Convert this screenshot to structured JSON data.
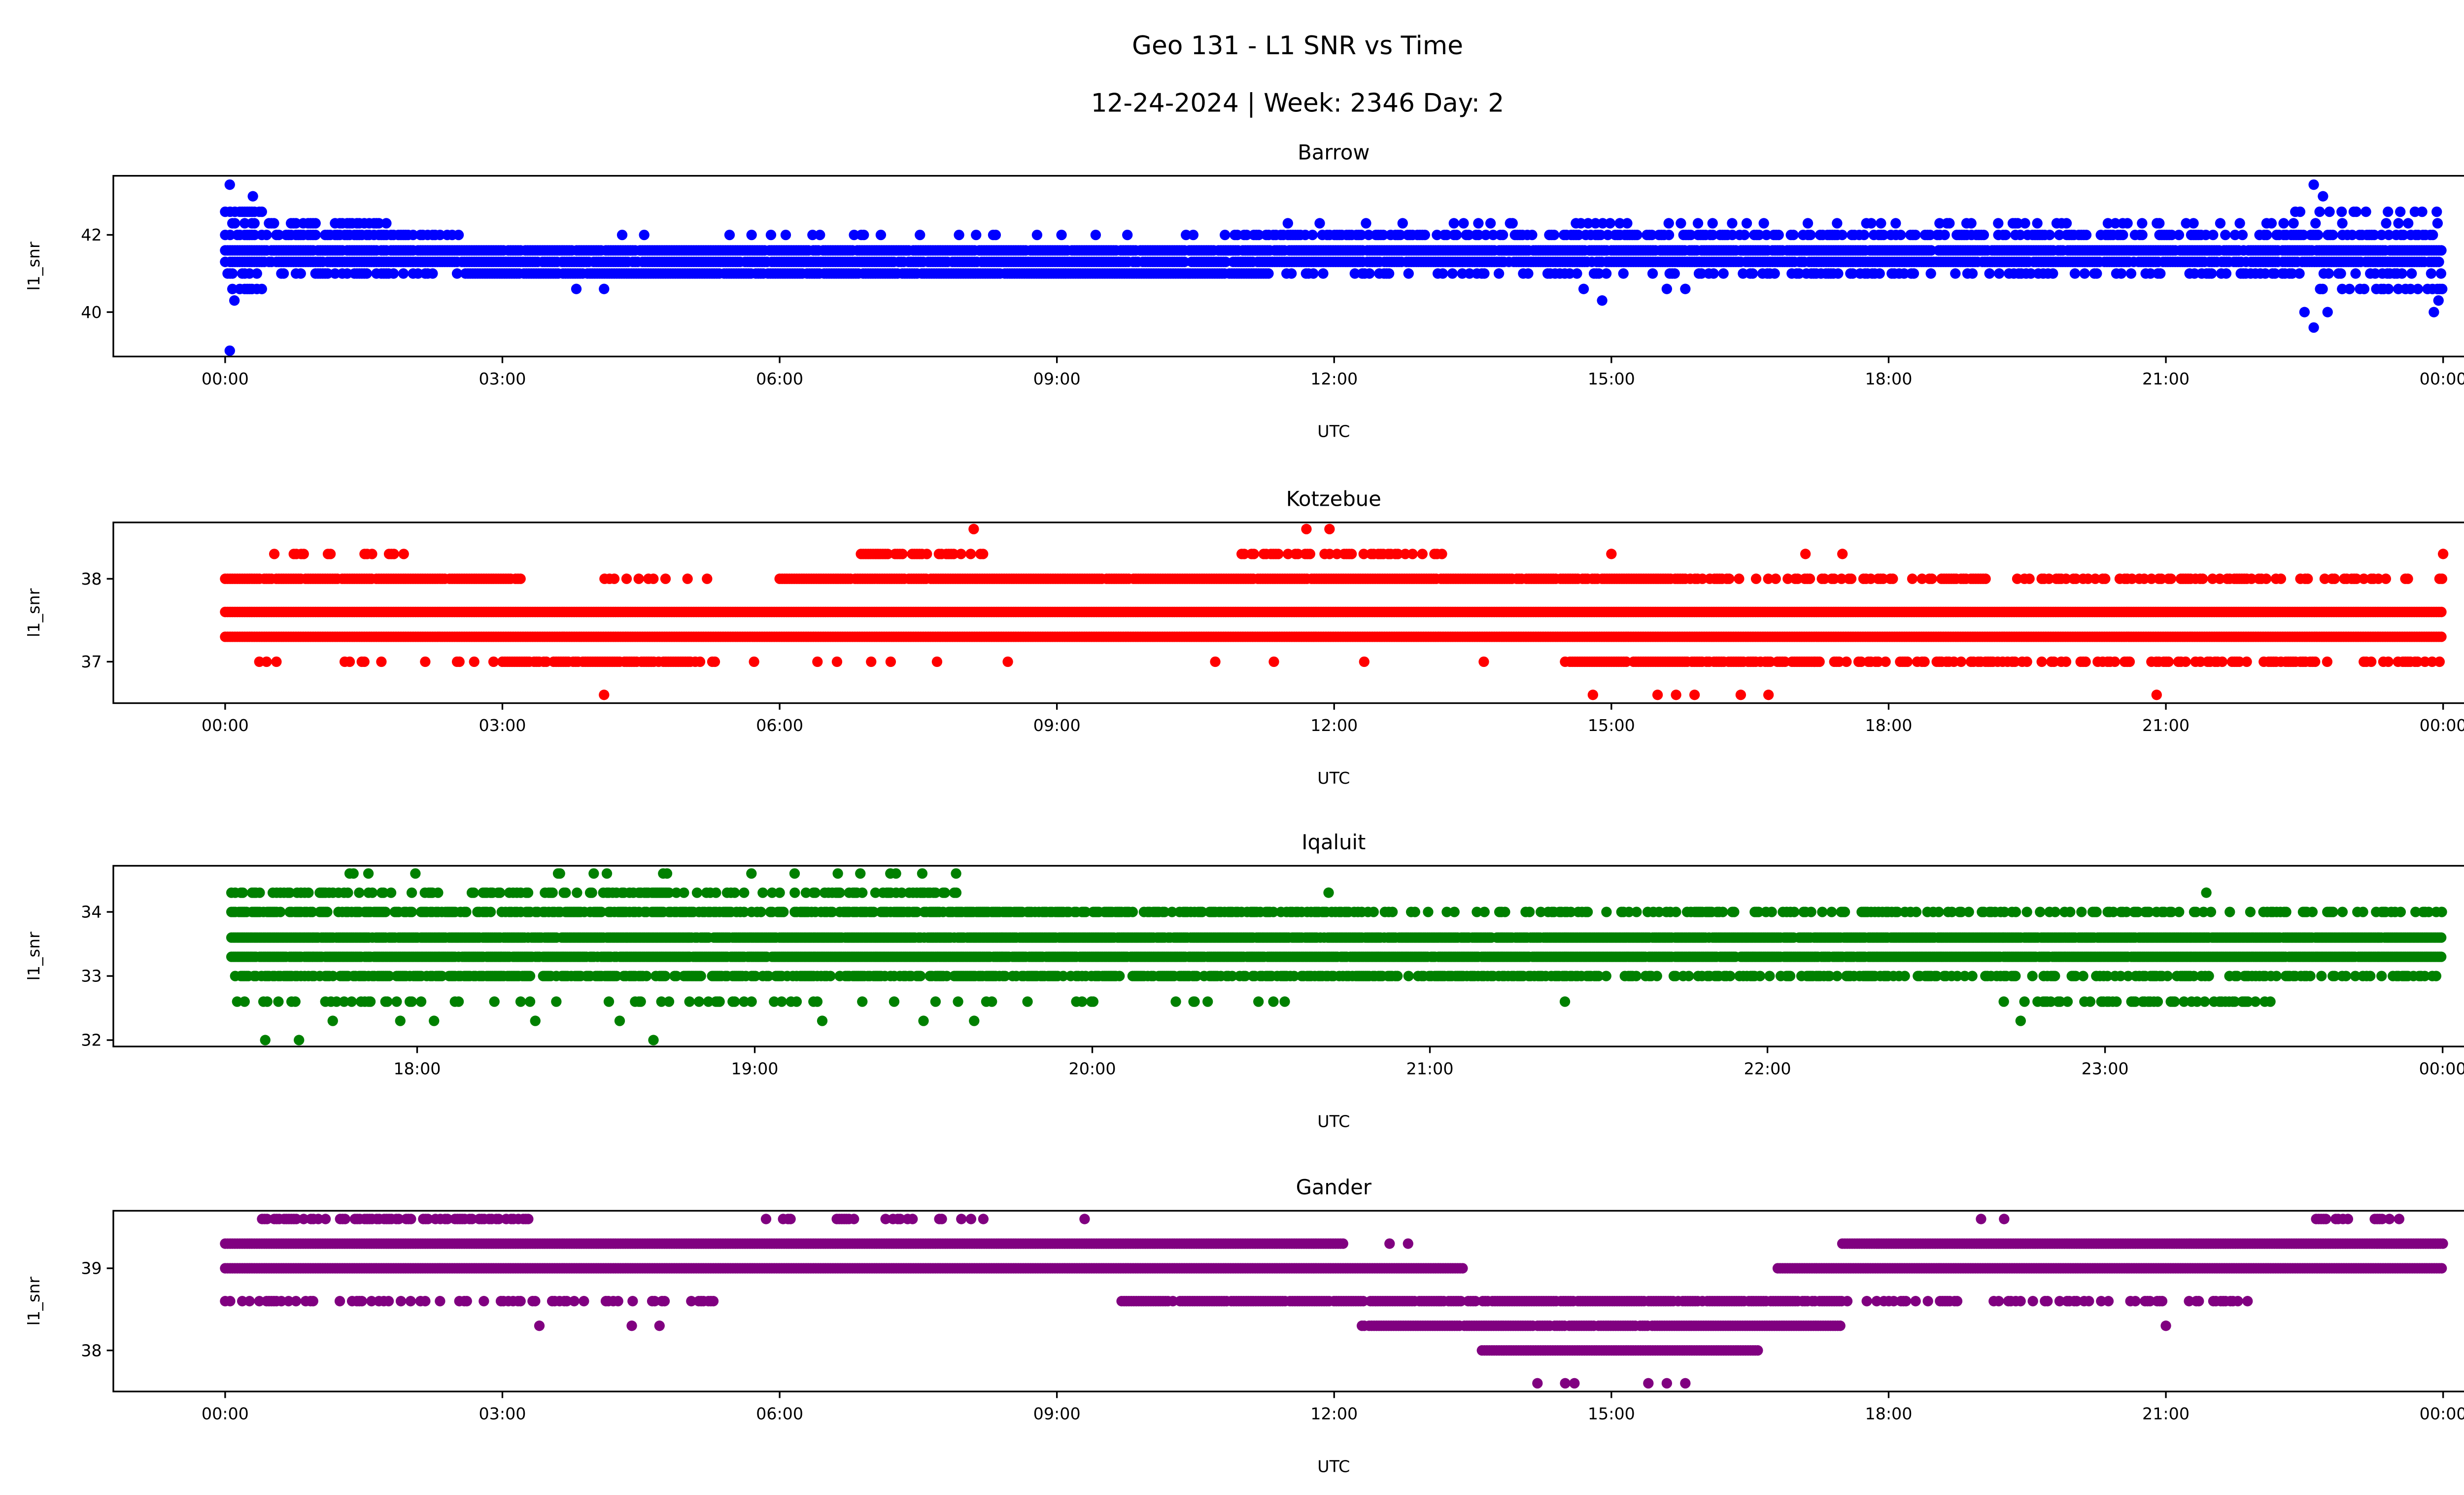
{
  "chart_data": [
    {
      "type": "scatter",
      "title": "Barrow",
      "xlabel": "UTC",
      "ylabel": "l1_snr",
      "color": "#0000ff",
      "xlim": [
        -1.21,
        25.2
      ],
      "ylim": [
        38.85,
        43.53
      ],
      "xticks": [
        0,
        3,
        6,
        9,
        12,
        15,
        18,
        21,
        24
      ],
      "xticklabels": [
        "00:00",
        "03:00",
        "06:00",
        "09:00",
        "12:00",
        "15:00",
        "18:00",
        "21:00",
        "00:00"
      ],
      "yticks": [
        40,
        42
      ],
      "yticklabels": [
        "40",
        "42"
      ],
      "bands": [
        {
          "y": 41.6,
          "from": 0,
          "to": 24,
          "density": 0.95
        },
        {
          "y": 41.3,
          "from": 0,
          "to": 24,
          "density": 0.95
        },
        {
          "y": 41.0,
          "from": 0,
          "to": 2.6,
          "density": 0.4
        },
        {
          "y": 41.0,
          "from": 2.6,
          "to": 11.3,
          "density": 0.95
        },
        {
          "y": 41.0,
          "from": 11.3,
          "to": 24,
          "density": 0.3
        },
        {
          "y": 42.0,
          "from": 0,
          "to": 2.5,
          "density": 0.6
        },
        {
          "y": 42.0,
          "from": 2.5,
          "to": 11,
          "density": 0.08
        },
        {
          "y": 42.0,
          "from": 11,
          "to": 24,
          "density": 0.55
        },
        {
          "y": 42.3,
          "from": 0,
          "to": 1.8,
          "density": 0.4
        },
        {
          "y": 42.3,
          "from": 11.5,
          "to": 24,
          "density": 0.12
        },
        {
          "y": 40.6,
          "from": 0,
          "to": 0.4,
          "density": 0.5
        },
        {
          "y": 40.6,
          "from": 22.3,
          "to": 24,
          "density": 0.2
        },
        {
          "y": 42.6,
          "from": 0,
          "to": 0.5,
          "density": 0.6
        },
        {
          "y": 42.6,
          "from": 22.4,
          "to": 24,
          "density": 0.3
        }
      ],
      "points": [
        [
          0.05,
          39.0
        ],
        [
          0.05,
          43.3
        ],
        [
          0.3,
          43.0
        ],
        [
          0.1,
          40.3
        ],
        [
          3.8,
          40.6
        ],
        [
          4.1,
          40.6
        ],
        [
          14.7,
          40.6
        ],
        [
          14.9,
          40.3
        ],
        [
          15.6,
          40.6
        ],
        [
          15.8,
          40.6
        ],
        [
          22.6,
          43.3
        ],
        [
          22.7,
          43.0
        ],
        [
          22.6,
          39.6
        ],
        [
          22.5,
          40.0
        ],
        [
          22.75,
          40.0
        ],
        [
          23.1,
          40.6
        ],
        [
          23.9,
          40.0
        ],
        [
          23.95,
          40.3
        ]
      ]
    },
    {
      "type": "scatter",
      "title": "Kotzebue",
      "xlabel": "UTC",
      "ylabel": "l1_snr",
      "color": "#ff0000",
      "xlim": [
        -1.21,
        25.2
      ],
      "ylim": [
        36.5,
        38.68
      ],
      "xticks": [
        0,
        3,
        6,
        9,
        12,
        15,
        18,
        21,
        24
      ],
      "xticklabels": [
        "00:00",
        "03:00",
        "06:00",
        "09:00",
        "12:00",
        "15:00",
        "18:00",
        "21:00",
        "00:00"
      ],
      "yticks": [
        37,
        38
      ],
      "yticklabels": [
        "37",
        "38"
      ],
      "bands": [
        {
          "y": 37.6,
          "from": 0,
          "to": 24,
          "density": 1
        },
        {
          "y": 37.3,
          "from": 0,
          "to": 24,
          "density": 1
        },
        {
          "y": 38.0,
          "from": 0,
          "to": 3.2,
          "density": 0.9
        },
        {
          "y": 38.0,
          "from": 4,
          "to": 6,
          "density": 0.15
        },
        {
          "y": 38.0,
          "from": 6,
          "to": 15.8,
          "density": 0.95
        },
        {
          "y": 38.0,
          "from": 15.8,
          "to": 24,
          "density": 0.45
        },
        {
          "y": 37.0,
          "from": 0,
          "to": 3,
          "density": 0.1
        },
        {
          "y": 37.0,
          "from": 3,
          "to": 5.3,
          "density": 0.8
        },
        {
          "y": 37.0,
          "from": 5.3,
          "to": 14.5,
          "density": 0.05
        },
        {
          "y": 37.0,
          "from": 14.5,
          "to": 17.2,
          "density": 0.8
        },
        {
          "y": 37.0,
          "from": 17.2,
          "to": 24,
          "density": 0.45
        },
        {
          "y": 38.3,
          "from": 0.4,
          "to": 2,
          "density": 0.2
        },
        {
          "y": 38.3,
          "from": 6.8,
          "to": 8.3,
          "density": 0.5
        },
        {
          "y": 38.3,
          "from": 11,
          "to": 13.2,
          "density": 0.5
        }
      ],
      "points": [
        [
          8.1,
          38.6
        ],
        [
          11.7,
          38.6
        ],
        [
          11.95,
          38.6
        ],
        [
          4.1,
          36.6
        ],
        [
          14.8,
          36.6
        ],
        [
          15.5,
          36.6
        ],
        [
          15.7,
          36.6
        ],
        [
          15.9,
          36.6
        ],
        [
          16.4,
          36.6
        ],
        [
          16.7,
          36.6
        ],
        [
          20.9,
          36.6
        ],
        [
          15.0,
          38.3
        ],
        [
          17.1,
          38.3
        ],
        [
          17.5,
          38.3
        ],
        [
          24,
          38.3
        ]
      ]
    },
    {
      "type": "scatter",
      "title": "Iqaluit",
      "xlabel": "UTC",
      "ylabel": "l1_snr",
      "color": "#008000",
      "xlim": [
        17.1,
        24.33
      ],
      "ylim": [
        31.9,
        34.72
      ],
      "xticks": [
        18,
        19,
        20,
        21,
        22,
        23,
        24
      ],
      "xticklabels": [
        "18:00",
        "19:00",
        "20:00",
        "21:00",
        "22:00",
        "23:00",
        "00:00"
      ],
      "yticks": [
        32,
        33,
        34
      ],
      "yticklabels": [
        "32",
        "33",
        "34"
      ],
      "bands": [
        {
          "y": 33.6,
          "from": 17.45,
          "to": 24,
          "density": 0.95
        },
        {
          "y": 33.3,
          "from": 17.45,
          "to": 24,
          "density": 0.95
        },
        {
          "y": 34.0,
          "from": 17.45,
          "to": 20.8,
          "density": 0.6
        },
        {
          "y": 34.0,
          "from": 20.8,
          "to": 24,
          "density": 0.3
        },
        {
          "y": 33.0,
          "from": 17.45,
          "to": 21.5,
          "density": 0.6
        },
        {
          "y": 33.0,
          "from": 21.5,
          "to": 24,
          "density": 0.4
        },
        {
          "y": 34.3,
          "from": 17.45,
          "to": 19.6,
          "density": 0.35
        },
        {
          "y": 32.6,
          "from": 17.45,
          "to": 20.6,
          "density": 0.15
        },
        {
          "y": 32.6,
          "from": 22.7,
          "to": 23.5,
          "density": 0.3
        },
        {
          "y": 34.6,
          "from": 17.7,
          "to": 19.8,
          "density": 0.05
        }
      ],
      "points": [
        [
          17.55,
          32.0
        ],
        [
          17.65,
          32.0
        ],
        [
          17.75,
          32.3
        ],
        [
          17.95,
          32.3
        ],
        [
          18.05,
          32.3
        ],
        [
          18.35,
          32.3
        ],
        [
          18.6,
          32.3
        ],
        [
          18.7,
          32.0
        ],
        [
          19.2,
          32.3
        ],
        [
          19.5,
          32.3
        ],
        [
          19.65,
          32.3
        ],
        [
          20.3,
          32.6
        ],
        [
          21.4,
          32.6
        ],
        [
          22.75,
          32.3
        ],
        [
          23.3,
          34.3
        ],
        [
          20.7,
          34.3
        ]
      ]
    },
    {
      "type": "scatter",
      "title": "Gander",
      "xlabel": "UTC",
      "ylabel": "l1_snr",
      "color": "#800080",
      "xlim": [
        -1.21,
        25.2
      ],
      "ylim": [
        37.5,
        39.7
      ],
      "xticks": [
        0,
        3,
        6,
        9,
        12,
        15,
        18,
        21,
        24
      ],
      "xticklabels": [
        "00:00",
        "03:00",
        "06:00",
        "09:00",
        "12:00",
        "15:00",
        "18:00",
        "21:00",
        "00:00"
      ],
      "yticks": [
        38,
        39
      ],
      "yticklabels": [
        "38",
        "39"
      ],
      "bands": [
        {
          "y": 39.3,
          "from": 0,
          "to": 12.1,
          "density": 1
        },
        {
          "y": 39.3,
          "from": 17.5,
          "to": 24,
          "density": 1
        },
        {
          "y": 39.0,
          "from": 0,
          "to": 13.4,
          "density": 1
        },
        {
          "y": 39.0,
          "from": 16.8,
          "to": 24,
          "density": 1
        },
        {
          "y": 38.6,
          "from": 0,
          "to": 5.3,
          "density": 0.35
        },
        {
          "y": 38.6,
          "from": 9.7,
          "to": 17.5,
          "density": 0.9
        },
        {
          "y": 38.6,
          "from": 17.5,
          "to": 22,
          "density": 0.35
        },
        {
          "y": 38.3,
          "from": 12.3,
          "to": 17.5,
          "density": 0.95
        },
        {
          "y": 38.0,
          "from": 13.6,
          "to": 16.6,
          "density": 1
        },
        {
          "y": 39.6,
          "from": 0.4,
          "to": 3.3,
          "density": 0.6
        },
        {
          "y": 39.6,
          "from": 5.8,
          "to": 8.3,
          "density": 0.2
        },
        {
          "y": 39.6,
          "from": 22.6,
          "to": 23.6,
          "density": 0.4
        }
      ],
      "points": [
        [
          9.3,
          39.6
        ],
        [
          19.0,
          39.6
        ],
        [
          19.25,
          39.6
        ],
        [
          12.6,
          39.3
        ],
        [
          12.8,
          39.3
        ],
        [
          3.4,
          38.3
        ],
        [
          4.4,
          38.3
        ],
        [
          4.7,
          38.3
        ],
        [
          21.0,
          38.3
        ],
        [
          14.2,
          37.6
        ],
        [
          14.5,
          37.6
        ],
        [
          14.6,
          37.6
        ],
        [
          15.4,
          37.6
        ],
        [
          15.6,
          37.6
        ],
        [
          15.8,
          37.6
        ]
      ]
    }
  ],
  "title": "Geo 131 - L1 SNR vs Time",
  "subtitle": "12-24-2024 | Week: 2346 Day: 2"
}
